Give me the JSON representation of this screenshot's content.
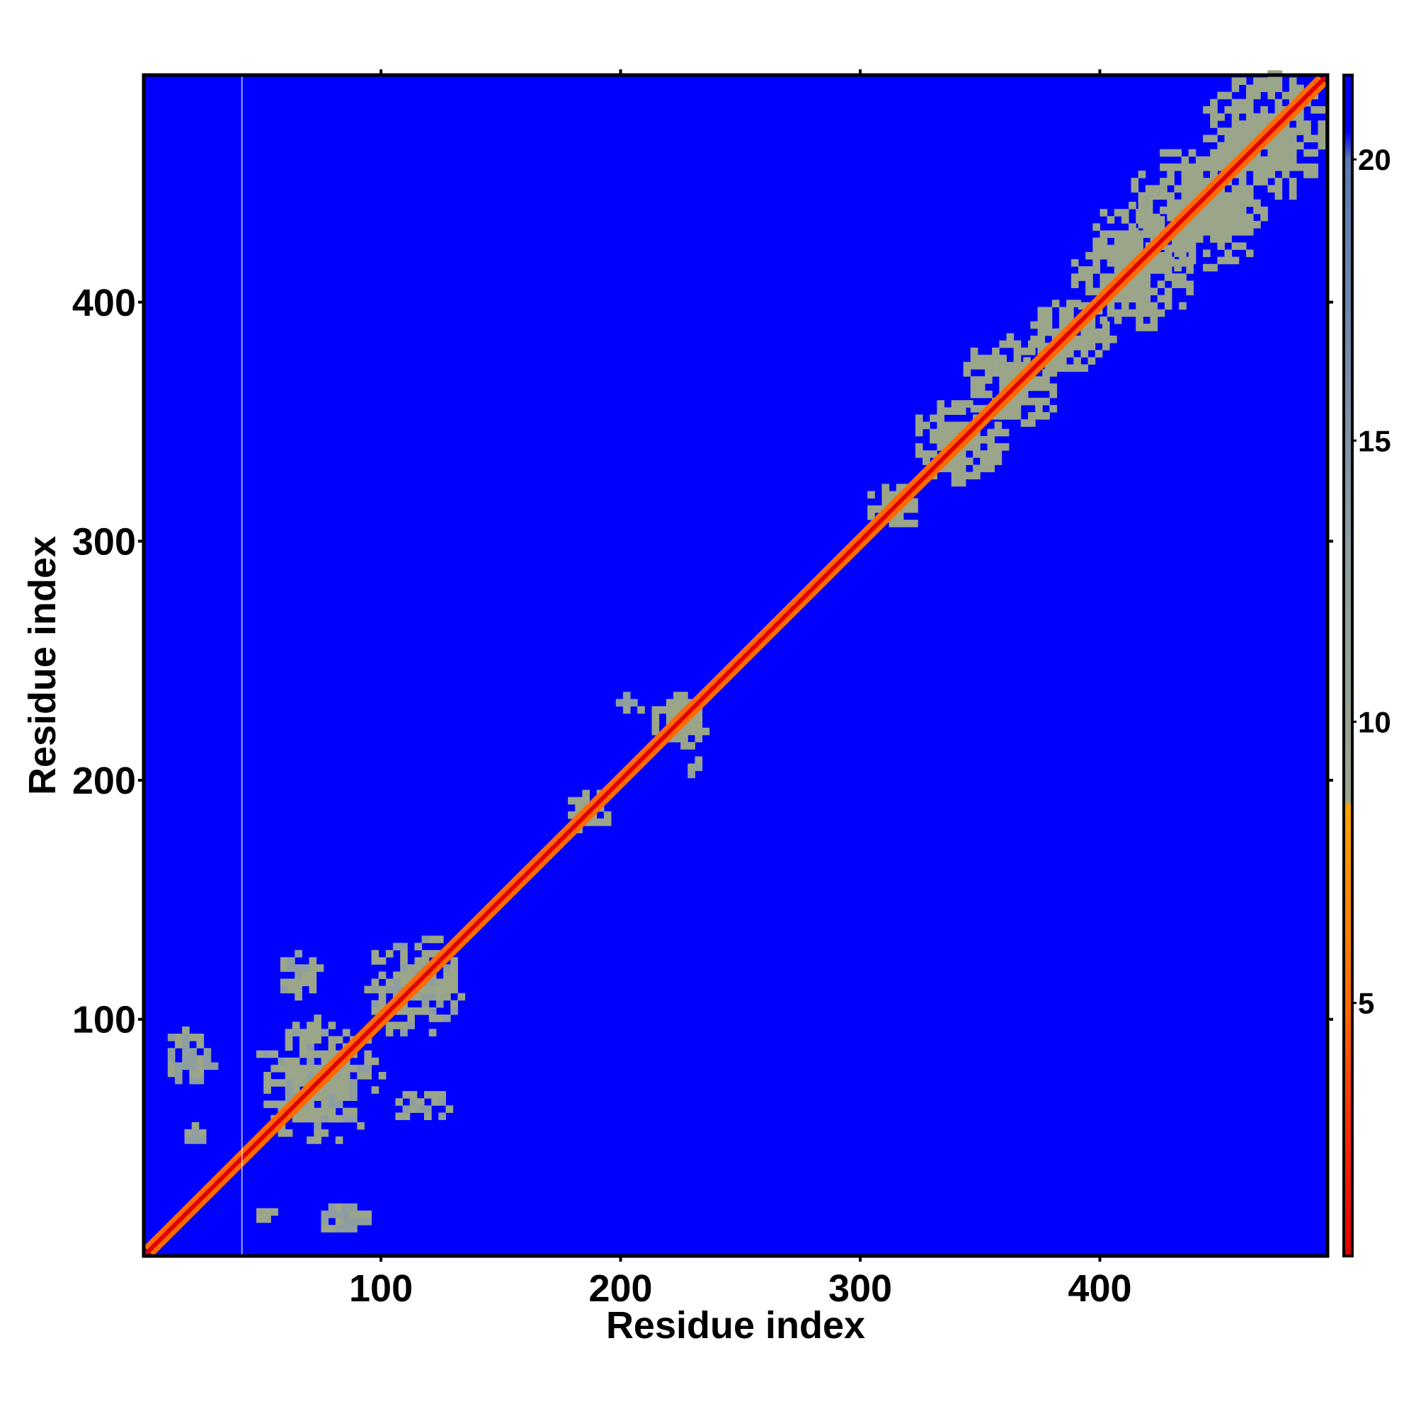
{
  "chart_data": {
    "type": "heatmap",
    "title": "",
    "xlabel": "Residue index",
    "ylabel": "Residue index",
    "xlim": [
      1,
      495
    ],
    "ylim": [
      1,
      495
    ],
    "x_ticks": [
      100,
      200,
      300,
      400
    ],
    "y_ticks": [
      100,
      200,
      300,
      400
    ],
    "colorbar": {
      "range": [
        0.5,
        21.5
      ],
      "ticks": [
        5,
        10,
        15,
        20
      ],
      "stops": [
        {
          "value": 0.5,
          "color": "#e00000"
        },
        {
          "value": 3,
          "color": "#ff3000"
        },
        {
          "value": 5,
          "color": "#ff6a00"
        },
        {
          "value": 8.5,
          "color": "#ffa000"
        },
        {
          "value": 8.6,
          "color": "#9aa58a"
        },
        {
          "value": 13,
          "color": "#8e9ea0"
        },
        {
          "value": 20,
          "color": "#5a7ab4"
        },
        {
          "value": 20.5,
          "color": "#0000ff"
        },
        {
          "value": 21.5,
          "color": "#0000ff"
        }
      ]
    },
    "background_value": 21,
    "diagonal": {
      "from": 1,
      "to": 495,
      "value": 2
    },
    "near_diagonal_band_value": 6,
    "contact_regions": [
      {
        "x": [
          45,
          100
        ],
        "y": [
          45,
          100
        ],
        "value": 12
      },
      {
        "x": [
          90,
          135
        ],
        "y": [
          90,
          135
        ],
        "value": 12
      },
      {
        "x": [
          55,
          75
        ],
        "y": [
          105,
          130
        ],
        "value": 12
      },
      {
        "x": [
          100,
          130
        ],
        "y": [
          55,
          70
        ],
        "value": 12
      },
      {
        "x": [
          72,
          95
        ],
        "y": [
          8,
          22
        ],
        "value": 14
      },
      {
        "x": [
          45,
          55
        ],
        "y": [
          12,
          20
        ],
        "value": 14
      },
      {
        "x": [
          8,
          30
        ],
        "y": [
          70,
          95
        ],
        "value": 14
      },
      {
        "x": [
          15,
          25
        ],
        "y": [
          45,
          55
        ],
        "value": 14
      },
      {
        "x": [
          175,
          195
        ],
        "y": [
          175,
          195
        ],
        "value": 11
      },
      {
        "x": [
          210,
          235
        ],
        "y": [
          210,
          235
        ],
        "value": 11
      },
      {
        "x": [
          195,
          210
        ],
        "y": [
          225,
          235
        ],
        "value": 14
      },
      {
        "x": [
          225,
          235
        ],
        "y": [
          195,
          210
        ],
        "value": 14
      },
      {
        "x": [
          300,
          325
        ],
        "y": [
          300,
          325
        ],
        "value": 11
      },
      {
        "x": [
          320,
          360
        ],
        "y": [
          320,
          360
        ],
        "value": 11
      },
      {
        "x": [
          340,
          385
        ],
        "y": [
          345,
          385
        ],
        "value": 11
      },
      {
        "x": [
          365,
          405
        ],
        "y": [
          365,
          400
        ],
        "value": 11
      },
      {
        "x": [
          385,
          440
        ],
        "y": [
          385,
          440
        ],
        "value": 11
      },
      {
        "x": [
          410,
          470
        ],
        "y": [
          410,
          465
        ],
        "value": 11
      },
      {
        "x": [
          440,
          495
        ],
        "y": [
          440,
          495
        ],
        "value": 11
      }
    ],
    "gap_column": 42
  }
}
